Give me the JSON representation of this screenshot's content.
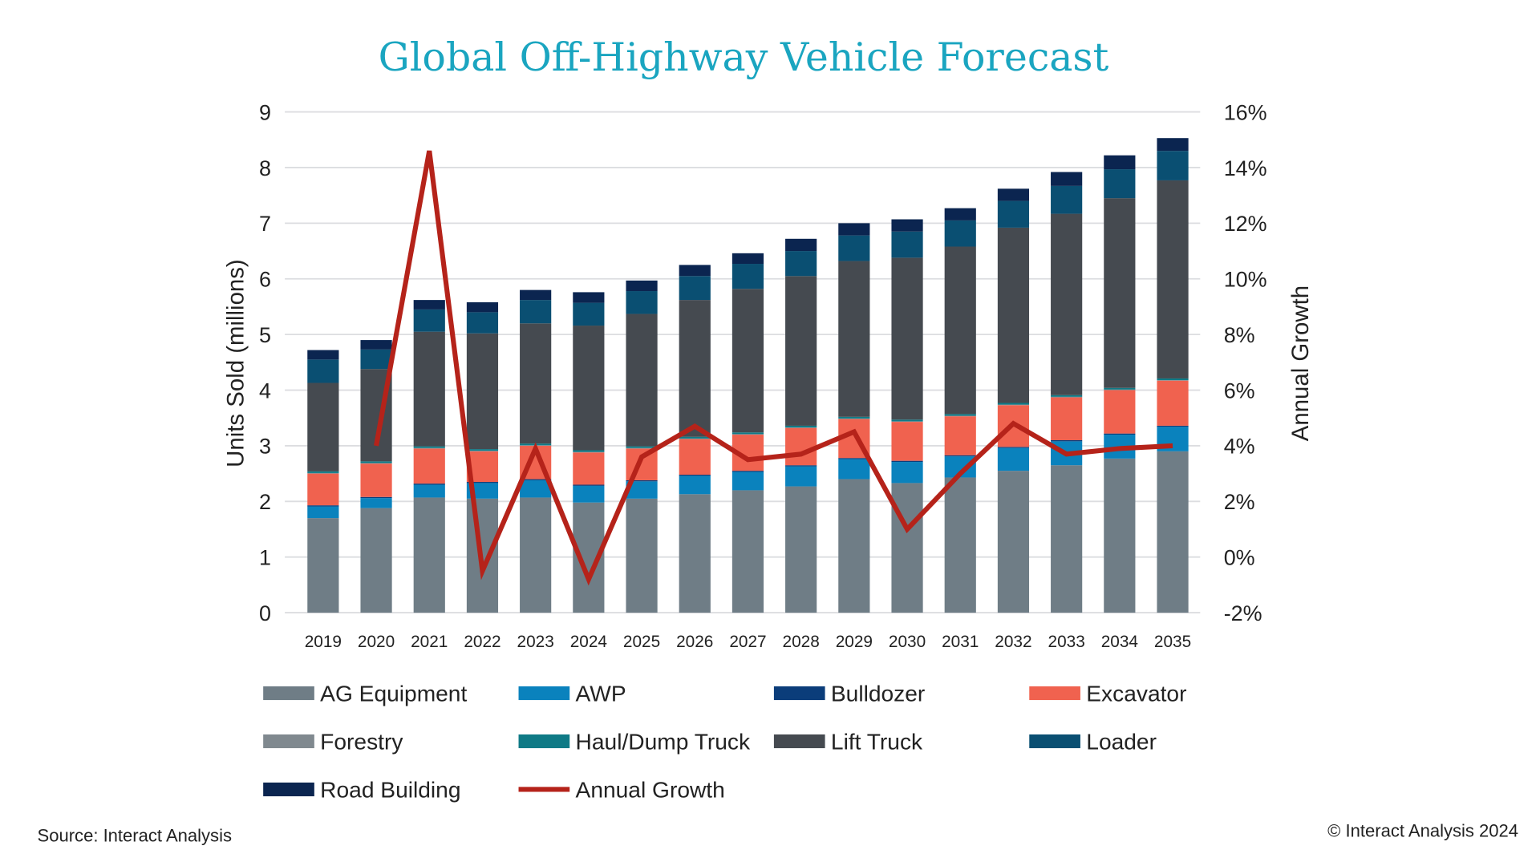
{
  "chart_data": {
    "type": "bar",
    "subtype": "stacked-bar-with-line",
    "title": "Global Off-Highway Vehicle Forecast",
    "ylabel": "Units Sold (millions)",
    "y2label": "Annual Growth",
    "ylim": [
      0,
      9
    ],
    "yticks": [
      "0",
      "1",
      "2",
      "3",
      "4",
      "5",
      "6",
      "7",
      "8",
      "9"
    ],
    "y2lim": [
      -2,
      16
    ],
    "y2ticks": [
      "-2%",
      "0%",
      "2%",
      "4%",
      "6%",
      "8%",
      "10%",
      "12%",
      "14%",
      "16%"
    ],
    "grid": true,
    "legend_placement": "bottom",
    "categories": [
      "2019",
      "2020",
      "2021",
      "2022",
      "2023",
      "2024",
      "2025",
      "2026",
      "2027",
      "2028",
      "2029",
      "2030",
      "2031",
      "2032",
      "2033",
      "2034",
      "2035"
    ],
    "series": [
      {
        "name": "AG Equipment",
        "color": "#6f7d86",
        "values": [
          1.7,
          1.88,
          2.07,
          2.05,
          2.07,
          1.98,
          2.05,
          2.13,
          2.2,
          2.27,
          2.4,
          2.33,
          2.43,
          2.55,
          2.65,
          2.77,
          2.9
        ]
      },
      {
        "name": "AWP",
        "color": "#0a82bd",
        "values": [
          0.21,
          0.18,
          0.23,
          0.28,
          0.31,
          0.3,
          0.31,
          0.33,
          0.33,
          0.36,
          0.36,
          0.38,
          0.38,
          0.41,
          0.43,
          0.43,
          0.44
        ]
      },
      {
        "name": "Bulldozer",
        "color": "#0b3d7a",
        "values": [
          0.02,
          0.02,
          0.02,
          0.02,
          0.02,
          0.02,
          0.02,
          0.02,
          0.02,
          0.02,
          0.02,
          0.02,
          0.02,
          0.02,
          0.02,
          0.02,
          0.02
        ]
      },
      {
        "name": "Excavator",
        "color": "#f0624f",
        "values": [
          0.57,
          0.6,
          0.63,
          0.55,
          0.6,
          0.58,
          0.57,
          0.64,
          0.65,
          0.67,
          0.7,
          0.7,
          0.7,
          0.75,
          0.77,
          0.78,
          0.81
        ]
      },
      {
        "name": "Forestry",
        "color": "#80898f",
        "values": [
          0.01,
          0.01,
          0.01,
          0.01,
          0.01,
          0.01,
          0.01,
          0.01,
          0.01,
          0.01,
          0.01,
          0.01,
          0.01,
          0.01,
          0.01,
          0.01,
          0.01
        ]
      },
      {
        "name": "Haul/Dump Truck",
        "color": "#0f7a86",
        "values": [
          0.03,
          0.03,
          0.03,
          0.03,
          0.03,
          0.03,
          0.03,
          0.03,
          0.03,
          0.03,
          0.03,
          0.03,
          0.03,
          0.03,
          0.03,
          0.03,
          0.03
        ]
      },
      {
        "name": "Lift Truck",
        "color": "#454a50",
        "values": [
          1.59,
          1.66,
          2.06,
          2.08,
          2.16,
          2.24,
          2.38,
          2.46,
          2.58,
          2.69,
          2.8,
          2.91,
          3.01,
          3.15,
          3.26,
          3.41,
          3.56
        ]
      },
      {
        "name": "Loader",
        "color": "#0a4f72",
        "values": [
          0.42,
          0.35,
          0.4,
          0.38,
          0.42,
          0.41,
          0.41,
          0.43,
          0.45,
          0.45,
          0.46,
          0.47,
          0.47,
          0.48,
          0.5,
          0.52,
          0.53
        ]
      },
      {
        "name": "Road Building",
        "color": "#0b2550",
        "values": [
          0.17,
          0.17,
          0.17,
          0.18,
          0.18,
          0.19,
          0.19,
          0.2,
          0.19,
          0.22,
          0.22,
          0.22,
          0.22,
          0.22,
          0.25,
          0.25,
          0.23
        ]
      }
    ],
    "line_series": {
      "name": "Annual Growth",
      "color": "#b5231a",
      "axis": "right",
      "unit": "%",
      "values": [
        null,
        4.0,
        14.6,
        -0.5,
        3.9,
        -0.8,
        3.6,
        4.7,
        3.5,
        3.7,
        4.5,
        1.0,
        3.0,
        4.8,
        3.7,
        3.9,
        4.0
      ]
    },
    "title_color": "#1aa5c0"
  },
  "footer": {
    "source": "Source: Interact Analysis",
    "copyright": "© Interact Analysis 2024"
  }
}
